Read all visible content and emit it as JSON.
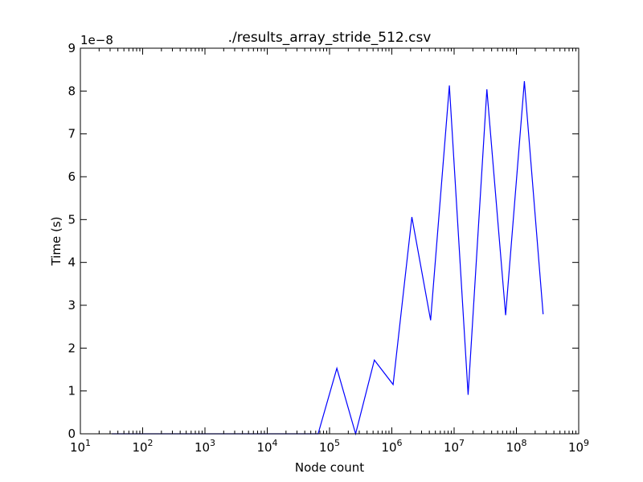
{
  "chart_data": {
    "type": "line",
    "title": "./results_array_stride_512.csv",
    "xlabel": "Node count",
    "ylabel": "Time (s)",
    "y_offset_label": "1e−8",
    "x_scale": "log",
    "xlim": [
      10,
      1000000000
    ],
    "ylim": [
      0,
      9
    ],
    "y_multiplier": 1e-08,
    "grid": false,
    "legend": "none",
    "x_tick_labels": [
      {
        "base": "10",
        "exp": "1"
      },
      {
        "base": "10",
        "exp": "2"
      },
      {
        "base": "10",
        "exp": "3"
      },
      {
        "base": "10",
        "exp": "4"
      },
      {
        "base": "10",
        "exp": "5"
      },
      {
        "base": "10",
        "exp": "6"
      },
      {
        "base": "10",
        "exp": "7"
      },
      {
        "base": "10",
        "exp": "8"
      },
      {
        "base": "10",
        "exp": "9"
      }
    ],
    "y_tick_labels": [
      "0",
      "1",
      "2",
      "3",
      "4",
      "5",
      "6",
      "7",
      "8",
      "9"
    ],
    "series": [
      {
        "color": "#0000ff",
        "x": [
          32,
          64,
          128,
          256,
          512,
          1024,
          2048,
          4096,
          8192,
          16384,
          32768,
          65536,
          131072,
          262144,
          524288,
          1048576,
          2097152,
          4194304,
          8388608,
          16777216,
          33554432,
          67108864,
          134217728,
          268435456
        ],
        "y": [
          0,
          0,
          0,
          0,
          0,
          0,
          0,
          0,
          0,
          0,
          0,
          0,
          1.53,
          0,
          1.72,
          1.15,
          5.06,
          2.65,
          8.13,
          0.91,
          8.04,
          2.77,
          8.23,
          2.79
        ]
      }
    ]
  }
}
